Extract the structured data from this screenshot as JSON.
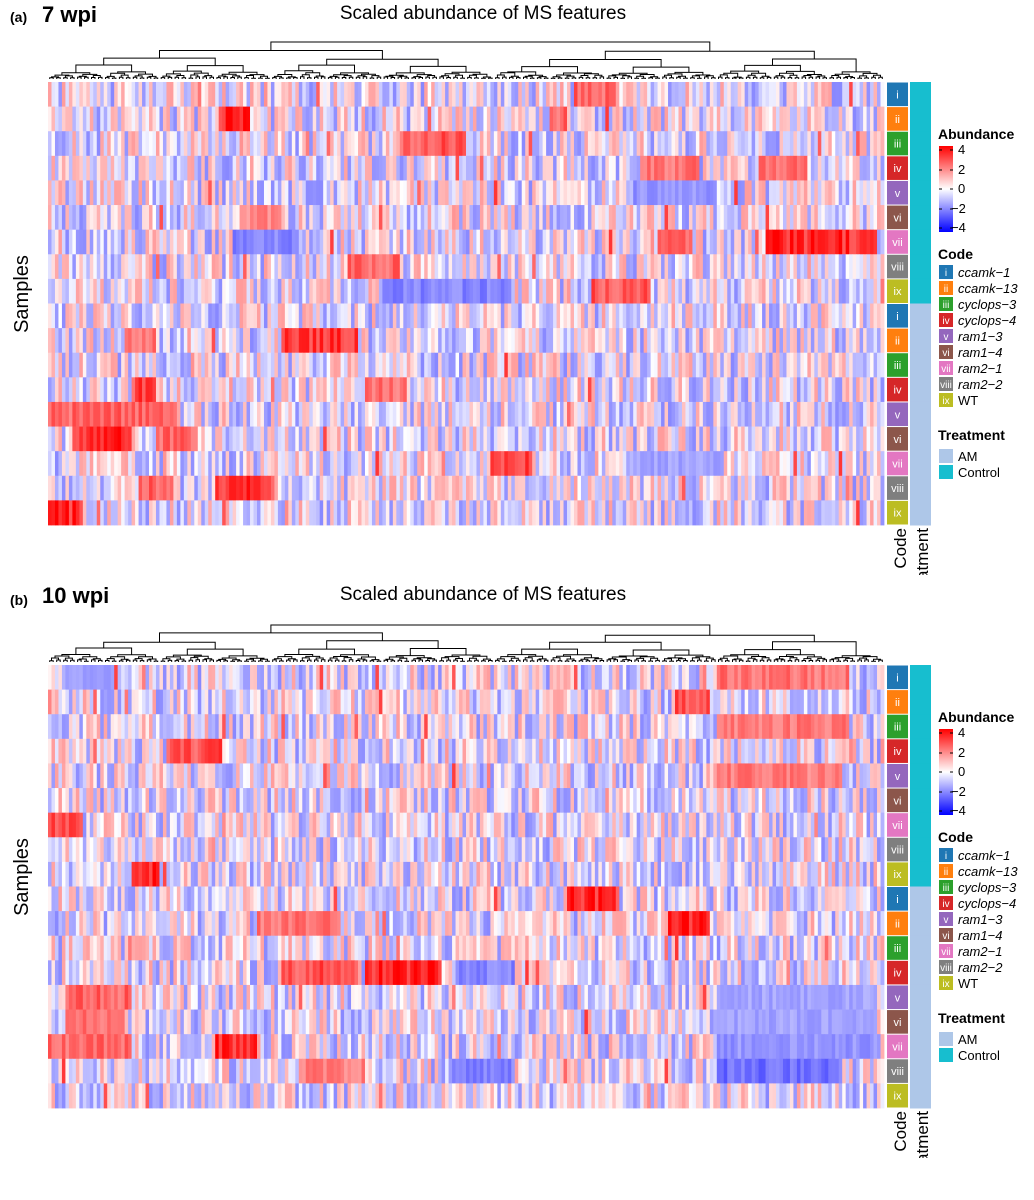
{
  "chart_data": [
    {
      "type": "heatmap",
      "panel_label": "(a)",
      "timepoint": "7 wpi",
      "title": "Scaled abundance of MS features",
      "ylabel": "Samples",
      "row_annotation_labels": {
        "code": "Code",
        "treatment": "Treatment"
      },
      "rows": [
        {
          "code": "i",
          "treatment": "Control"
        },
        {
          "code": "ii",
          "treatment": "Control"
        },
        {
          "code": "iii",
          "treatment": "Control"
        },
        {
          "code": "iv",
          "treatment": "Control"
        },
        {
          "code": "v",
          "treatment": "Control"
        },
        {
          "code": "vi",
          "treatment": "Control"
        },
        {
          "code": "vii",
          "treatment": "Control"
        },
        {
          "code": "viii",
          "treatment": "Control"
        },
        {
          "code": "ix",
          "treatment": "Control"
        },
        {
          "code": "i",
          "treatment": "AM"
        },
        {
          "code": "ii",
          "treatment": "AM"
        },
        {
          "code": "iii",
          "treatment": "AM"
        },
        {
          "code": "iv",
          "treatment": "AM"
        },
        {
          "code": "v",
          "treatment": "AM"
        },
        {
          "code": "vi",
          "treatment": "AM"
        },
        {
          "code": "vii",
          "treatment": "AM"
        },
        {
          "code": "viii",
          "treatment": "AM"
        },
        {
          "code": "ix",
          "treatment": "AM"
        }
      ],
      "hot_spots": [
        {
          "row": 0,
          "x0": 0.63,
          "x1": 0.68,
          "v": 2.5
        },
        {
          "row": 1,
          "x0": 0.205,
          "x1": 0.24,
          "v": 4
        },
        {
          "row": 1,
          "x0": 0.6,
          "x1": 0.62,
          "v": 2.5
        },
        {
          "row": 2,
          "x0": 0.42,
          "x1": 0.5,
          "v": 2.8
        },
        {
          "row": 3,
          "x0": 0.71,
          "x1": 0.78,
          "v": 2.2
        },
        {
          "row": 3,
          "x0": 0.85,
          "x1": 0.91,
          "v": 2.2
        },
        {
          "row": 5,
          "x0": 0.23,
          "x1": 0.28,
          "v": 1.8
        },
        {
          "row": 6,
          "x0": 0.86,
          "x1": 0.99,
          "v": 4
        },
        {
          "row": 6,
          "x0": 0.73,
          "x1": 0.77,
          "v": 2.5
        },
        {
          "row": 7,
          "x0": 0.36,
          "x1": 0.42,
          "v": 2.5
        },
        {
          "row": 8,
          "x0": 0.65,
          "x1": 0.72,
          "v": 2.8
        },
        {
          "row": 10,
          "x0": 0.28,
          "x1": 0.37,
          "v": 3.5
        },
        {
          "row": 10,
          "x0": 0.09,
          "x1": 0.13,
          "v": 2.2
        },
        {
          "row": 12,
          "x0": 0.1,
          "x1": 0.13,
          "v": 3.2
        },
        {
          "row": 12,
          "x0": 0.38,
          "x1": 0.43,
          "v": 2.2
        },
        {
          "row": 13,
          "x0": 0.0,
          "x1": 0.15,
          "v": 2.5
        },
        {
          "row": 14,
          "x0": 0.03,
          "x1": 0.1,
          "v": 4
        },
        {
          "row": 14,
          "x0": 0.13,
          "x1": 0.18,
          "v": 2.5
        },
        {
          "row": 15,
          "x0": 0.53,
          "x1": 0.58,
          "v": 3.2
        },
        {
          "row": 16,
          "x0": 0.2,
          "x1": 0.27,
          "v": 3.5
        },
        {
          "row": 16,
          "x0": 0.11,
          "x1": 0.15,
          "v": 2.5
        },
        {
          "row": 17,
          "x0": 0.0,
          "x1": 0.04,
          "v": 4
        }
      ],
      "cold_spots": [
        {
          "row": 4,
          "x0": 0.7,
          "x1": 0.8,
          "v": -1.5
        },
        {
          "row": 6,
          "x0": 0.22,
          "x1": 0.3,
          "v": -1.8
        },
        {
          "row": 8,
          "x0": 0.4,
          "x1": 0.55,
          "v": -1.8
        },
        {
          "row": 15,
          "x0": 0.7,
          "x1": 0.8,
          "v": -1.2
        }
      ],
      "color_scale": {
        "title": "Abundance",
        "ticks": [
          "4",
          "2",
          "0",
          "−2",
          "−4"
        ],
        "range": [
          -4,
          4
        ],
        "colors": [
          "#0000ff",
          "#ffffff",
          "#ff0000"
        ]
      },
      "code_legend": {
        "title": "Code",
        "entries": [
          {
            "code": "i",
            "label": "ccamk−1",
            "color": "#1f77b4"
          },
          {
            "code": "ii",
            "label": "ccamk−13",
            "color": "#ff7f0e"
          },
          {
            "code": "iii",
            "label": "cyclops−3",
            "color": "#2ca02c"
          },
          {
            "code": "iv",
            "label": "cyclops−4",
            "color": "#d62728"
          },
          {
            "code": "v",
            "label": "ram1−3",
            "color": "#9467bd"
          },
          {
            "code": "vi",
            "label": "ram1−4",
            "color": "#8c564b"
          },
          {
            "code": "vii",
            "label": "ram2−1",
            "color": "#e377c2"
          },
          {
            "code": "viii",
            "label": "ram2−2",
            "color": "#7f7f7f"
          },
          {
            "code": "ix",
            "label": "WT",
            "color": "#bcbd22"
          }
        ]
      },
      "treatment_legend": {
        "title": "Treatment",
        "entries": [
          {
            "label": "AM",
            "color": "#aec7e8"
          },
          {
            "label": "Control",
            "color": "#17becf"
          }
        ]
      }
    },
    {
      "type": "heatmap",
      "panel_label": "(b)",
      "timepoint": "10 wpi",
      "title": "Scaled abundance of MS features",
      "ylabel": "Samples",
      "row_annotation_labels": {
        "code": "Code",
        "treatment": "Treatment"
      },
      "rows": [
        {
          "code": "i",
          "treatment": "Control"
        },
        {
          "code": "ii",
          "treatment": "Control"
        },
        {
          "code": "iii",
          "treatment": "Control"
        },
        {
          "code": "iv",
          "treatment": "Control"
        },
        {
          "code": "v",
          "treatment": "Control"
        },
        {
          "code": "vi",
          "treatment": "Control"
        },
        {
          "code": "vii",
          "treatment": "Control"
        },
        {
          "code": "viii",
          "treatment": "Control"
        },
        {
          "code": "ix",
          "treatment": "Control"
        },
        {
          "code": "i",
          "treatment": "AM"
        },
        {
          "code": "ii",
          "treatment": "AM"
        },
        {
          "code": "iii",
          "treatment": "AM"
        },
        {
          "code": "iv",
          "treatment": "AM"
        },
        {
          "code": "v",
          "treatment": "AM"
        },
        {
          "code": "vi",
          "treatment": "AM"
        },
        {
          "code": "vii",
          "treatment": "AM"
        },
        {
          "code": "viii",
          "treatment": "AM"
        },
        {
          "code": "ix",
          "treatment": "AM"
        }
      ],
      "hot_spots": [
        {
          "row": 0,
          "x0": 0.8,
          "x1": 0.96,
          "v": 2.2
        },
        {
          "row": 1,
          "x0": 0.75,
          "x1": 0.79,
          "v": 3
        },
        {
          "row": 2,
          "x0": 0.8,
          "x1": 0.96,
          "v": 2.0
        },
        {
          "row": 3,
          "x0": 0.14,
          "x1": 0.21,
          "v": 3
        },
        {
          "row": 4,
          "x0": 0.8,
          "x1": 0.95,
          "v": 2.0
        },
        {
          "row": 6,
          "x0": 0.0,
          "x1": 0.04,
          "v": 3
        },
        {
          "row": 8,
          "x0": 0.1,
          "x1": 0.135,
          "v": 4
        },
        {
          "row": 9,
          "x0": 0.62,
          "x1": 0.68,
          "v": 4
        },
        {
          "row": 10,
          "x0": 0.74,
          "x1": 0.79,
          "v": 4
        },
        {
          "row": 10,
          "x0": 0.25,
          "x1": 0.35,
          "v": 2.2
        },
        {
          "row": 12,
          "x0": 0.38,
          "x1": 0.47,
          "v": 4
        },
        {
          "row": 12,
          "x0": 0.28,
          "x1": 0.37,
          "v": 3
        },
        {
          "row": 13,
          "x0": 0.02,
          "x1": 0.1,
          "v": 2.5
        },
        {
          "row": 14,
          "x0": 0.02,
          "x1": 0.09,
          "v": 2.2
        },
        {
          "row": 15,
          "x0": 0.2,
          "x1": 0.25,
          "v": 4
        },
        {
          "row": 15,
          "x0": 0.0,
          "x1": 0.1,
          "v": 2.5
        },
        {
          "row": 16,
          "x0": 0.3,
          "x1": 0.38,
          "v": 2.0
        }
      ],
      "cold_spots": [
        {
          "row": 0,
          "x0": 0.02,
          "x1": 0.08,
          "v": -1.2
        },
        {
          "row": 12,
          "x0": 0.49,
          "x1": 0.56,
          "v": -1.8
        },
        {
          "row": 13,
          "x0": 0.8,
          "x1": 0.99,
          "v": -1.2
        },
        {
          "row": 14,
          "x0": 0.8,
          "x1": 0.99,
          "v": -1.2
        },
        {
          "row": 15,
          "x0": 0.8,
          "x1": 0.99,
          "v": -1.5
        },
        {
          "row": 16,
          "x0": 0.8,
          "x1": 0.95,
          "v": -2.2
        },
        {
          "row": 16,
          "x0": 0.48,
          "x1": 0.56,
          "v": -1.8
        }
      ],
      "color_scale": {
        "title": "Abundance",
        "ticks": [
          "4",
          "2",
          "0",
          "−2",
          "−4"
        ],
        "range": [
          -4,
          4
        ],
        "colors": [
          "#0000ff",
          "#ffffff",
          "#ff0000"
        ]
      },
      "code_legend": {
        "title": "Code",
        "entries": [
          {
            "code": "i",
            "label": "ccamk−1",
            "color": "#1f77b4"
          },
          {
            "code": "ii",
            "label": "ccamk−13",
            "color": "#ff7f0e"
          },
          {
            "code": "iii",
            "label": "cyclops−3",
            "color": "#2ca02c"
          },
          {
            "code": "iv",
            "label": "cyclops−4",
            "color": "#d62728"
          },
          {
            "code": "v",
            "label": "ram1−3",
            "color": "#9467bd"
          },
          {
            "code": "vi",
            "label": "ram1−4",
            "color": "#8c564b"
          },
          {
            "code": "vii",
            "label": "ram2−1",
            "color": "#e377c2"
          },
          {
            "code": "viii",
            "label": "ram2−2",
            "color": "#7f7f7f"
          },
          {
            "code": "ix",
            "label": "WT",
            "color": "#bcbd22"
          }
        ]
      },
      "treatment_legend": {
        "title": "Treatment",
        "entries": [
          {
            "label": "AM",
            "color": "#aec7e8"
          },
          {
            "label": "Control",
            "color": "#17becf"
          }
        ]
      }
    }
  ]
}
